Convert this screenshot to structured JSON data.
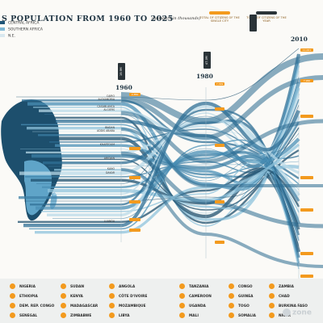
{
  "title": "S POPULATION FROM 1960 TO 2025",
  "subtitle": "(numbers in thousands)",
  "regions": [
    "CENTRAL AFRICA",
    "SOUTHERN AFRICA",
    "N.E."
  ],
  "intro_text": "",
  "legend": {
    "single_city": "TOTAL OF CITIZENS OF THE SINGLE CITY",
    "year_total": "TOTAL OF CITIZENS OF THE YEAR"
  },
  "timeline": [
    {
      "year": "1960",
      "total": "19.9M"
    },
    {
      "year": "1980",
      "total": "47.0M"
    },
    {
      "year": "2010",
      "total": ""
    }
  ],
  "cities": [
    "CAIRO",
    "ALEXANDRIA",
    "",
    "CASABLANCA",
    "ALGIERS",
    "",
    "",
    "",
    "",
    "IBADAN",
    "ADDIS ABABA",
    "",
    "",
    "",
    "KHARTOUM",
    "",
    "",
    "",
    "ABIDJAN",
    "",
    "",
    "KANO",
    "DAKAR",
    "",
    "",
    "",
    "",
    "",
    "",
    "",
    "",
    "",
    "",
    "",
    "",
    "",
    "LUANDA",
    "",
    "",
    ""
  ],
  "markers_1960": [
    "2,850",
    "",
    "",
    "",
    "",
    ""
  ],
  "markers_1980": [
    "7,349",
    "",
    "",
    "",
    ""
  ],
  "markers_2010": [
    "11,001",
    "7,960",
    "",
    "",
    "",
    "",
    ""
  ],
  "countries": [
    [
      "NIGERIA",
      "ETHIOPIA",
      "DEM. REP. CONGO",
      "SENEGAL"
    ],
    [
      "SUDAN",
      "KENYA",
      "MADAGASCAR",
      "ZIMBABWE"
    ],
    [
      "ANGOLA",
      "CÔTE D'IVOIRE",
      "MOZAMBIQUE",
      "LIBYA"
    ],
    [
      "TANZANIA",
      "CAMEROON",
      "UGANDA",
      "MALI"
    ],
    [
      "CONGO",
      "GUINEA",
      "TOGO",
      "SOMALIA"
    ],
    [
      "ZAMBIA",
      "CHAD",
      "BURKINA FASO",
      "NIGER"
    ]
  ],
  "watermark": "zone",
  "colors": {
    "accent": "#f39a1e",
    "dark": "#1f3442",
    "blue": "#2f6f95",
    "light_blue": "#8fc3dc"
  }
}
